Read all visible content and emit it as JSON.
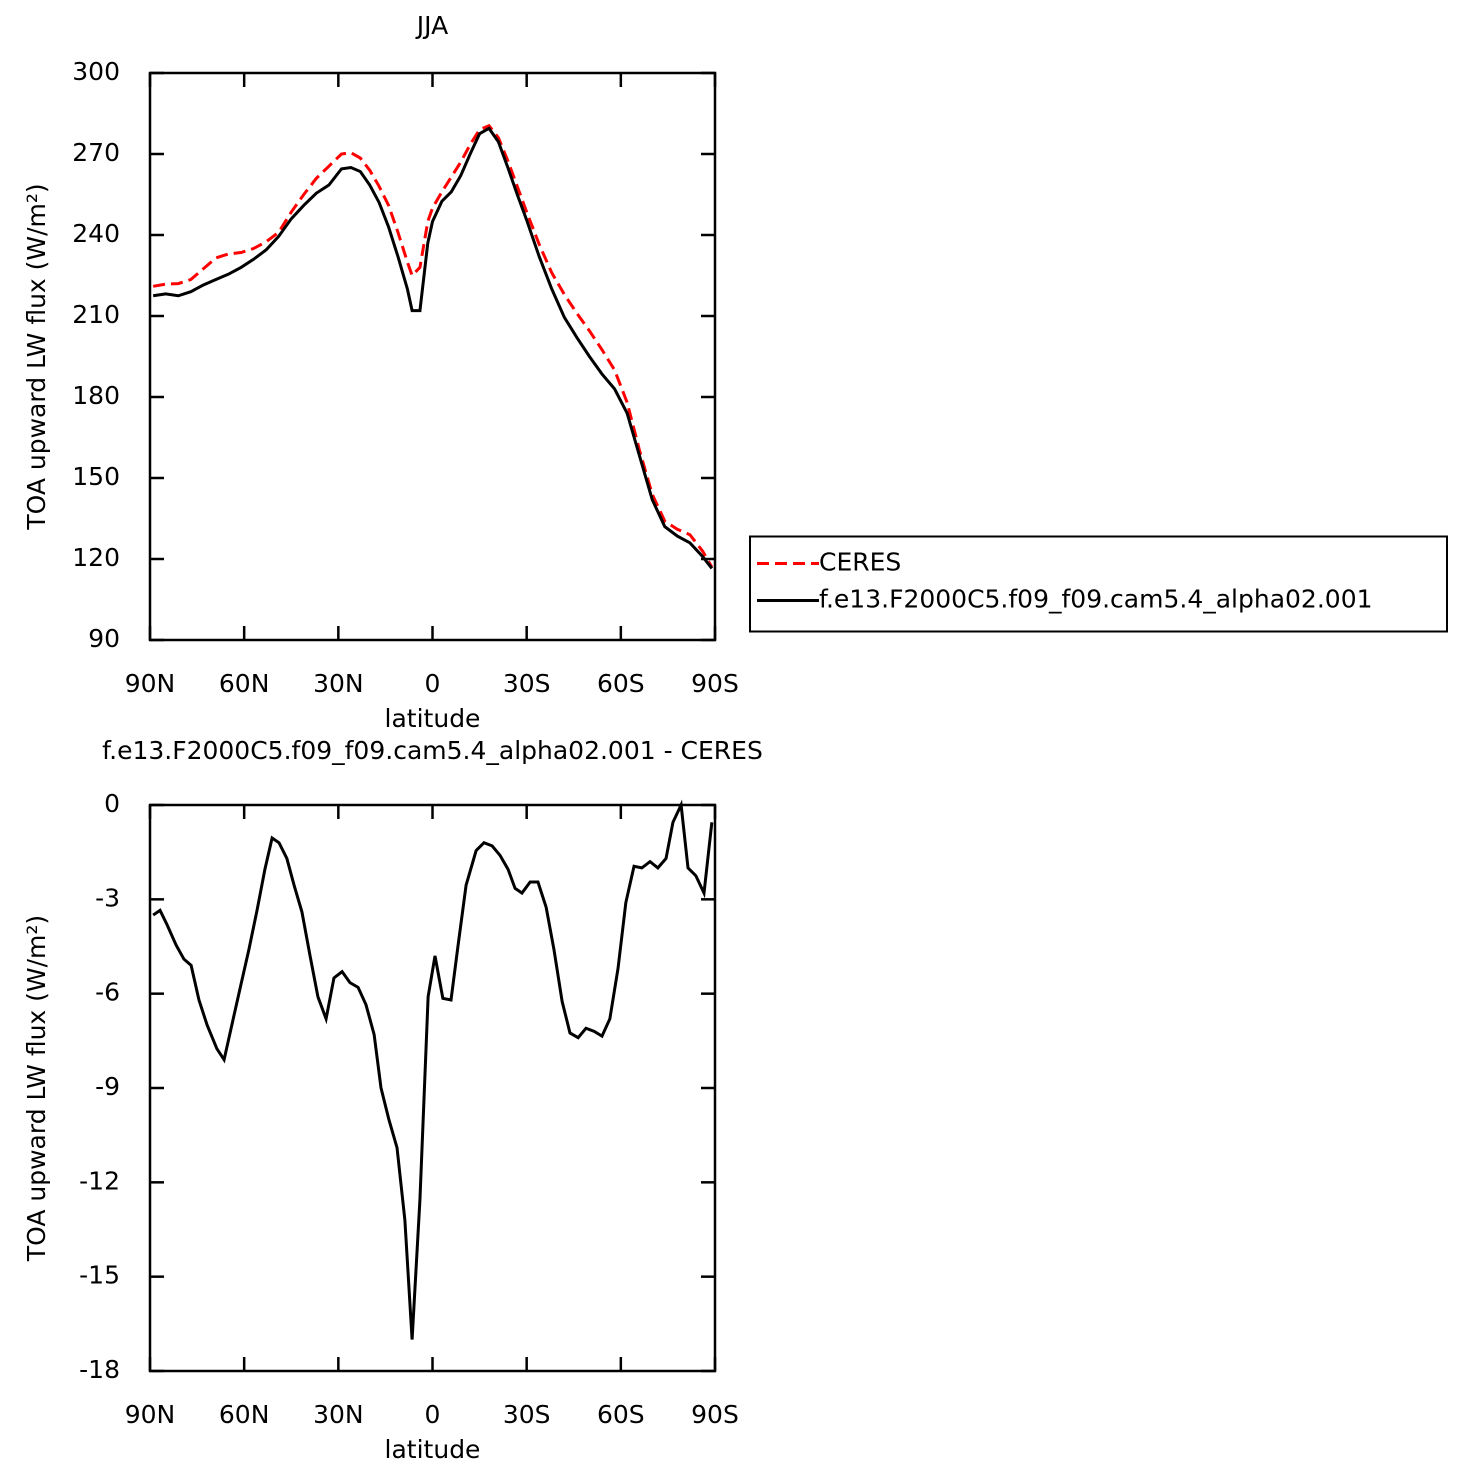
{
  "chart_data": [
    {
      "type": "line",
      "title": "JJA",
      "x_label": "latitude",
      "y_label": "TOA upward LW flux (W/m²)",
      "x": [
        89,
        85,
        81,
        77,
        73,
        69,
        65,
        61,
        57,
        53,
        49,
        45,
        41,
        37,
        33,
        29,
        26,
        23,
        20,
        17,
        14,
        11,
        8,
        6.5,
        4,
        1.5,
        0,
        -3,
        -6,
        -9,
        -12,
        -15,
        -18,
        -21,
        -24,
        -27,
        -30,
        -34,
        -38,
        -42,
        -46,
        -50,
        -54,
        -58,
        -62,
        -66,
        -70,
        -74,
        -78,
        -82,
        -86,
        -89
      ],
      "xlim": [
        90,
        -90
      ],
      "xticks": [
        {
          "value": 90,
          "label": "90N"
        },
        {
          "value": 60,
          "label": "60N"
        },
        {
          "value": 30,
          "label": "30N"
        },
        0,
        {
          "value": -30,
          "label": "30S"
        },
        {
          "value": -60,
          "label": "60S"
        },
        {
          "value": -90,
          "label": "90S"
        }
      ],
      "ylim": [
        90,
        300
      ],
      "yticks": [
        90,
        120,
        150,
        180,
        210,
        240,
        270,
        300
      ],
      "legend": "right",
      "series": [
        {
          "name": "CERES",
          "color": "#ff0000",
          "line_style": "dashed",
          "values": [
            221,
            221.8,
            222,
            223.5,
            227.5,
            231.5,
            233,
            233.5,
            235,
            237.5,
            241,
            248.5,
            255,
            261,
            265.5,
            270,
            270.5,
            268.5,
            264,
            258,
            251,
            241,
            230,
            225,
            228,
            245,
            250,
            256,
            261.5,
            267,
            273.5,
            279,
            280.5,
            276,
            267.5,
            258,
            248.5,
            236.5,
            226,
            218,
            211,
            204.5,
            197.5,
            190,
            178,
            160,
            144,
            134,
            131,
            129,
            123,
            117
          ]
        },
        {
          "name": "f.e13.F2000C5.f09_f09.cam5.4_alpha02.001",
          "color": "#000000",
          "line_style": "solid",
          "values": [
            217.5,
            218.2,
            217.5,
            219,
            221.5,
            223.5,
            225.5,
            228,
            231,
            234.5,
            239.5,
            246,
            251,
            255.5,
            258.5,
            264.5,
            265,
            263.5,
            258.5,
            252,
            243,
            232,
            220,
            212,
            212,
            237,
            245,
            252.5,
            256,
            262,
            270,
            277.5,
            279.5,
            274.5,
            265,
            255,
            245.5,
            232,
            220,
            209.5,
            202,
            195,
            188.5,
            183,
            174,
            158,
            142,
            132,
            128.5,
            126,
            121,
            116.5
          ]
        }
      ]
    },
    {
      "type": "line",
      "title": "f.e13.F2000C5.f09_f09.cam5.4_alpha02.001 - CERES",
      "x_label": "latitude",
      "y_label": "TOA upward LW flux (W/m²)",
      "x": [
        89.0,
        86.8,
        84.6,
        81.7,
        79.2,
        76.9,
        74.4,
        71.8,
        68.7,
        66.4,
        63.6,
        61.0,
        58.5,
        55.9,
        53.4,
        51.1,
        48.9,
        46.4,
        44.1,
        41.6,
        39.0,
        36.5,
        33.9,
        31.4,
        28.8,
        26.3,
        23.7,
        21.2,
        18.6,
        16.4,
        13.9,
        11.3,
        8.8,
        6.5,
        4.0,
        1.4,
        -0.8,
        -3.3,
        -5.9,
        -8.1,
        -10.7,
        -13.9,
        -16.4,
        -19.0,
        -21.5,
        -24.1,
        -26.3,
        -28.5,
        -31.1,
        -33.6,
        -36.2,
        -38.7,
        -41.3,
        -43.8,
        -46.4,
        -48.9,
        -51.5,
        -54.0,
        -56.5,
        -59.1,
        -61.6,
        -64.2,
        -66.7,
        -69.3,
        -71.8,
        -74.4,
        -76.6,
        -79.2,
        -81.4,
        -83.9,
        -86.5,
        -89.0
      ],
      "xlim": [
        90,
        -90
      ],
      "xticks": [
        {
          "value": 90,
          "label": "90N"
        },
        {
          "value": 60,
          "label": "60N"
        },
        {
          "value": 30,
          "label": "30N"
        },
        0,
        {
          "value": -30,
          "label": "30S"
        },
        {
          "value": -60,
          "label": "60S"
        },
        {
          "value": -90,
          "label": "90S"
        }
      ],
      "ylim": [
        -18,
        0
      ],
      "yticks": [
        -18,
        -15,
        -12,
        -9,
        -6,
        -3,
        0
      ],
      "series": [
        {
          "color": "#000000",
          "line_style": "solid",
          "values": [
            -3.5,
            -3.35,
            -3.8,
            -4.45,
            -4.9,
            -5.1,
            -6.2,
            -7.0,
            -7.75,
            -8.1,
            -6.85,
            -5.7,
            -4.6,
            -3.35,
            -2.05,
            -1.05,
            -1.2,
            -1.7,
            -2.55,
            -3.4,
            -4.8,
            -6.1,
            -6.8,
            -5.5,
            -5.3,
            -5.65,
            -5.8,
            -6.35,
            -7.3,
            -9.0,
            -10.0,
            -10.9,
            -13.2,
            -17.0,
            -12.55,
            -6.1,
            -4.8,
            -6.15,
            -6.2,
            -4.5,
            -2.55,
            -1.45,
            -1.2,
            -1.3,
            -1.6,
            -2.05,
            -2.65,
            -2.8,
            -2.45,
            -2.45,
            -3.25,
            -4.6,
            -6.25,
            -7.25,
            -7.4,
            -7.1,
            -7.2,
            -7.35,
            -6.8,
            -5.2,
            -3.1,
            -1.95,
            -2.0,
            -1.8,
            -2.0,
            -1.7,
            -0.55,
            0.0,
            -2.0,
            -2.25,
            -2.8,
            -0.55
          ]
        }
      ]
    }
  ]
}
